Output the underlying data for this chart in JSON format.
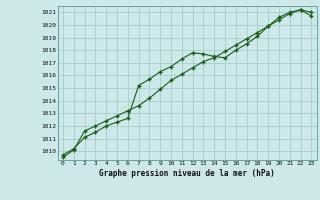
{
  "title": "Graphe pression niveau de la mer (hPa)",
  "bg_color": "#cce8e8",
  "grid_color": "#aacccc",
  "line_color": "#1a5c1a",
  "marker": "+",
  "xlim": [
    -0.5,
    23.5
  ],
  "ylim": [
    1009.3,
    1021.5
  ],
  "xticks": [
    0,
    1,
    2,
    3,
    4,
    5,
    6,
    7,
    8,
    9,
    10,
    11,
    12,
    13,
    14,
    15,
    16,
    17,
    18,
    19,
    20,
    21,
    22,
    23
  ],
  "yticks": [
    1010,
    1011,
    1012,
    1013,
    1014,
    1015,
    1016,
    1017,
    1018,
    1019,
    1020,
    1021
  ],
  "series1_x": [
    0,
    1,
    2,
    3,
    4,
    5,
    6,
    7,
    8,
    9,
    10,
    11,
    12,
    13,
    14,
    15,
    16,
    17,
    18,
    19,
    20,
    21,
    22,
    23
  ],
  "series1_y": [
    1009.7,
    1010.2,
    1011.1,
    1011.5,
    1012.0,
    1012.3,
    1012.6,
    1015.2,
    1015.7,
    1016.3,
    1016.7,
    1017.3,
    1017.8,
    1017.7,
    1017.5,
    1017.4,
    1018.0,
    1018.5,
    1019.1,
    1019.9,
    1020.6,
    1021.0,
    1021.2,
    1020.7
  ],
  "series2_x": [
    0,
    1,
    2,
    3,
    4,
    5,
    6,
    7,
    8,
    9,
    10,
    11,
    12,
    13,
    14,
    15,
    16,
    17,
    18,
    19,
    20,
    21,
    22,
    23
  ],
  "series2_y": [
    1009.5,
    1010.1,
    1011.6,
    1012.0,
    1012.4,
    1012.8,
    1013.2,
    1013.6,
    1014.2,
    1014.9,
    1015.6,
    1016.1,
    1016.6,
    1017.1,
    1017.4,
    1017.9,
    1018.4,
    1018.9,
    1019.4,
    1019.9,
    1020.4,
    1020.9,
    1021.2,
    1021.0
  ]
}
